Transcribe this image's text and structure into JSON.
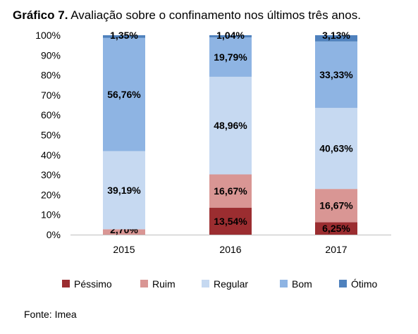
{
  "title": {
    "prefix": "Gráfico 7.",
    "text": "Avaliação sobre o confinamento nos últimos três anos."
  },
  "source": "Fonte: Imea",
  "chart_data": {
    "type": "bar",
    "stacked": true,
    "percent": true,
    "categories": [
      "2015",
      "2016",
      "2017"
    ],
    "series": [
      {
        "name": "Péssimo",
        "color": "#9b2d30",
        "values": [
          0,
          13.54,
          6.25
        ],
        "labels": [
          "",
          "13,54%",
          "6,25%"
        ]
      },
      {
        "name": "Ruim",
        "color": "#d99694",
        "values": [
          2.7,
          16.67,
          16.67
        ],
        "labels": [
          "2,70%",
          "16,67%",
          "16,67%"
        ]
      },
      {
        "name": "Regular",
        "color": "#c6d9f1",
        "values": [
          39.19,
          48.96,
          40.63
        ],
        "labels": [
          "39,19%",
          "48,96%",
          "40,63%"
        ]
      },
      {
        "name": "Bom",
        "color": "#8eb4e3",
        "values": [
          56.76,
          19.79,
          33.33
        ],
        "labels": [
          "56,76%",
          "19,79%",
          "33,33%"
        ]
      },
      {
        "name": "Ótimo",
        "color": "#4f81bd",
        "values": [
          1.35,
          1.04,
          3.13
        ],
        "labels": [
          "1,35%",
          "1,04%",
          "3,13%"
        ]
      }
    ],
    "ylim": [
      0,
      100
    ],
    "yticks": [
      "0%",
      "10%",
      "20%",
      "30%",
      "40%",
      "50%",
      "60%",
      "70%",
      "80%",
      "90%",
      "100%"
    ],
    "grid": false,
    "legend": "bottom"
  }
}
